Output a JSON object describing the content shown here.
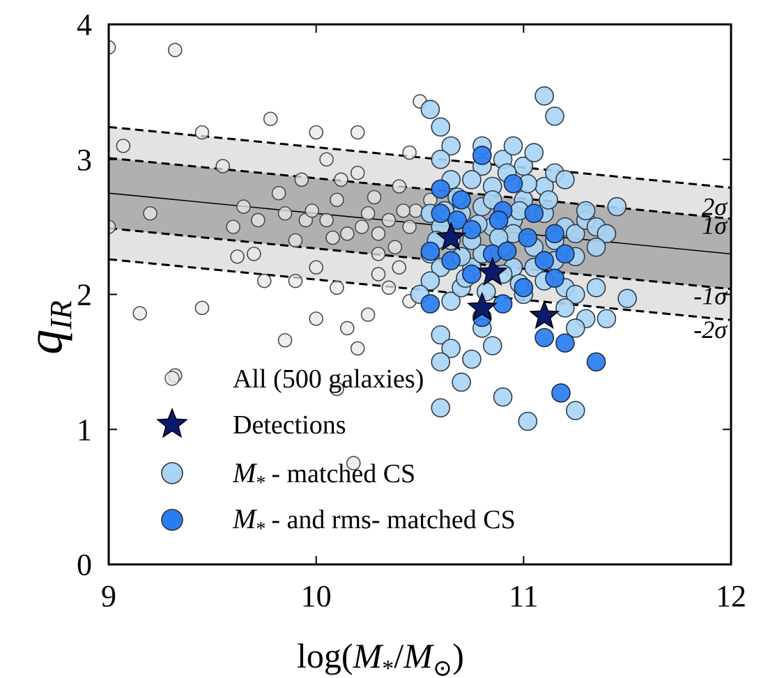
{
  "chart_data": {
    "type": "scatter",
    "xlabel": "log(M*/M⊙)",
    "ylabel": "q_IR",
    "xlim": [
      9,
      12
    ],
    "ylim": [
      0,
      4
    ],
    "xticks": [
      9,
      10,
      11,
      12
    ],
    "yticks": [
      0,
      1,
      2,
      3,
      4
    ],
    "xtick_labels": [
      "9",
      "10",
      "11",
      "12"
    ],
    "ytick_labels": [
      "0",
      "1",
      "2",
      "3",
      "4"
    ],
    "grid": false,
    "legend_position": "lower-left",
    "fit_line": {
      "x": [
        9,
        12
      ],
      "y": [
        2.75,
        2.3
      ]
    },
    "bands": [
      {
        "label": "1σ",
        "offset": 0.26,
        "color": "#b0b0b0"
      },
      {
        "label": "2σ",
        "offset": 0.49,
        "color": "#e3e3e3"
      }
    ],
    "band_labels": [
      "2σ",
      "1σ",
      "-1σ",
      "-2σ"
    ],
    "colors": {
      "all": "#e8e8e4",
      "detections": "#0b1a6b",
      "mass_matched": "#a8d4f5",
      "mass_rms_matched": "#2a7df0"
    },
    "series": [
      {
        "name": "All (500 galaxies)",
        "marker": "circle-hollow-grey",
        "points": [
          [
            9.0,
            3.83
          ],
          [
            9.32,
            3.81
          ],
          [
            9.07,
            3.1
          ],
          [
            9.45,
            3.2
          ],
          [
            9.15,
            1.86
          ],
          [
            9.45,
            1.9
          ],
          [
            9.32,
            1.4
          ],
          [
            9.2,
            2.6
          ],
          [
            9.0,
            2.5
          ],
          [
            9.55,
            2.95
          ],
          [
            9.65,
            2.65
          ],
          [
            9.6,
            2.5
          ],
          [
            9.7,
            2.3
          ],
          [
            9.78,
            3.3
          ],
          [
            9.85,
            2.6
          ],
          [
            9.9,
            2.4
          ],
          [
            9.95,
            2.55
          ],
          [
            10.05,
            3.0
          ],
          [
            10.1,
            2.7
          ],
          [
            10.15,
            2.45
          ],
          [
            10.2,
            2.9
          ],
          [
            10.25,
            2.6
          ],
          [
            10.3,
            2.3
          ],
          [
            10.35,
            2.55
          ],
          [
            10.4,
            2.8
          ],
          [
            10.45,
            2.5
          ],
          [
            10.0,
            2.2
          ],
          [
            9.9,
            2.1
          ],
          [
            10.0,
            1.82
          ],
          [
            10.15,
            1.75
          ],
          [
            10.2,
            1.6
          ],
          [
            10.25,
            1.85
          ],
          [
            9.85,
            1.66
          ],
          [
            10.1,
            1.3
          ],
          [
            10.35,
            2.05
          ],
          [
            10.4,
            2.2
          ],
          [
            10.45,
            1.95
          ],
          [
            9.75,
            2.1
          ],
          [
            9.62,
            2.28
          ],
          [
            10.0,
            3.2
          ],
          [
            10.2,
            3.2
          ],
          [
            10.5,
            3.43
          ],
          [
            10.18,
            0.75
          ],
          [
            9.93,
            2.85
          ],
          [
            10.08,
            2.42
          ],
          [
            10.28,
            2.72
          ],
          [
            10.48,
            2.62
          ],
          [
            9.72,
            2.55
          ],
          [
            9.82,
            2.75
          ],
          [
            10.05,
            2.55
          ],
          [
            10.3,
            2.45
          ],
          [
            10.38,
            2.35
          ],
          [
            10.42,
            2.62
          ],
          [
            10.1,
            2.05
          ],
          [
            10.3,
            2.15
          ],
          [
            9.98,
            2.62
          ],
          [
            10.22,
            2.5
          ],
          [
            10.12,
            2.85
          ],
          [
            10.45,
            3.05
          ],
          [
            10.55,
            2.7
          ]
        ]
      },
      {
        "name": "Detections",
        "marker": "star",
        "points": [
          [
            10.65,
            2.42
          ],
          [
            10.85,
            2.16
          ],
          [
            10.8,
            1.9
          ],
          [
            11.1,
            1.84
          ]
        ]
      },
      {
        "name": "M* - matched CS",
        "marker": "circle-light-blue",
        "points": [
          [
            10.55,
            3.37
          ],
          [
            10.6,
            3.24
          ],
          [
            10.65,
            3.1
          ],
          [
            10.6,
            3.0
          ],
          [
            10.65,
            2.85
          ],
          [
            10.7,
            2.7
          ],
          [
            10.55,
            2.6
          ],
          [
            10.6,
            2.5
          ],
          [
            10.65,
            2.4
          ],
          [
            10.55,
            2.3
          ],
          [
            10.6,
            2.2
          ],
          [
            10.55,
            2.1
          ],
          [
            10.5,
            2.0
          ],
          [
            10.65,
            1.95
          ],
          [
            10.7,
            2.05
          ],
          [
            10.75,
            2.2
          ],
          [
            10.8,
            2.3
          ],
          [
            10.85,
            2.5
          ],
          [
            10.8,
            2.65
          ],
          [
            10.85,
            2.8
          ],
          [
            10.8,
            2.95
          ],
          [
            10.8,
            3.1
          ],
          [
            10.9,
            3.0
          ],
          [
            10.95,
            3.1
          ],
          [
            11.0,
            2.95
          ],
          [
            11.05,
            3.05
          ],
          [
            11.1,
            3.47
          ],
          [
            11.15,
            3.32
          ],
          [
            11.1,
            2.8
          ],
          [
            11.15,
            2.9
          ],
          [
            11.2,
            2.85
          ],
          [
            11.1,
            2.6
          ],
          [
            11.2,
            2.5
          ],
          [
            11.15,
            2.4
          ],
          [
            11.25,
            2.45
          ],
          [
            11.3,
            2.55
          ],
          [
            11.35,
            2.5
          ],
          [
            11.4,
            2.45
          ],
          [
            11.45,
            2.65
          ],
          [
            11.35,
            2.35
          ],
          [
            11.35,
            2.05
          ],
          [
            11.2,
            2.05
          ],
          [
            11.25,
            2.0
          ],
          [
            11.3,
            1.82
          ],
          [
            11.4,
            1.82
          ],
          [
            11.5,
            1.97
          ],
          [
            11.2,
            1.9
          ],
          [
            11.25,
            1.75
          ],
          [
            11.0,
            2.0
          ],
          [
            10.95,
            2.2
          ],
          [
            10.9,
            2.35
          ],
          [
            10.95,
            2.55
          ],
          [
            11.0,
            2.7
          ],
          [
            10.75,
            2.85
          ],
          [
            10.7,
            2.6
          ],
          [
            10.6,
            1.7
          ],
          [
            10.65,
            1.6
          ],
          [
            10.75,
            1.52
          ],
          [
            10.85,
            1.62
          ],
          [
            10.8,
            1.75
          ],
          [
            10.6,
            1.5
          ],
          [
            10.7,
            1.35
          ],
          [
            10.6,
            1.16
          ],
          [
            10.9,
            1.24
          ],
          [
            11.02,
            1.06
          ],
          [
            11.25,
            1.14
          ],
          [
            10.95,
            2.45
          ],
          [
            10.9,
            2.15
          ],
          [
            10.75,
            2.4
          ],
          [
            10.7,
            2.28
          ],
          [
            11.05,
            2.35
          ],
          [
            11.05,
            2.2
          ],
          [
            11.1,
            2.1
          ],
          [
            11.15,
            2.25
          ],
          [
            10.98,
            2.62
          ],
          [
            10.85,
            2.7
          ],
          [
            10.68,
            2.72
          ],
          [
            10.62,
            2.62
          ],
          [
            11.12,
            2.7
          ],
          [
            10.92,
            2.9
          ],
          [
            11.02,
            2.82
          ],
          [
            10.78,
            2.52
          ],
          [
            10.88,
            2.42
          ],
          [
            10.58,
            2.4
          ],
          [
            10.72,
            2.12
          ],
          [
            11.3,
            2.62
          ],
          [
            11.25,
            2.28
          ],
          [
            10.82,
            2.02
          ],
          [
            10.98,
            2.08
          ]
        ]
      },
      {
        "name": "M* - and rms- matched CS",
        "marker": "circle-blue",
        "points": [
          [
            10.8,
            3.03
          ],
          [
            10.95,
            2.82
          ],
          [
            10.6,
            2.78
          ],
          [
            10.68,
            2.55
          ],
          [
            10.75,
            2.48
          ],
          [
            10.9,
            2.62
          ],
          [
            11.05,
            2.6
          ],
          [
            11.15,
            2.45
          ],
          [
            11.2,
            2.3
          ],
          [
            11.1,
            2.25
          ],
          [
            10.85,
            2.3
          ],
          [
            10.75,
            2.15
          ],
          [
            10.65,
            2.25
          ],
          [
            10.55,
            2.32
          ],
          [
            10.55,
            1.93
          ],
          [
            10.9,
            1.93
          ],
          [
            11.0,
            2.05
          ],
          [
            11.15,
            2.12
          ],
          [
            10.8,
            1.83
          ],
          [
            11.1,
            1.68
          ],
          [
            11.2,
            1.64
          ],
          [
            11.35,
            1.5
          ],
          [
            11.18,
            1.27
          ],
          [
            10.7,
            2.7
          ],
          [
            10.88,
            2.55
          ],
          [
            11.02,
            2.42
          ],
          [
            10.92,
            2.32
          ],
          [
            10.6,
            2.6
          ]
        ]
      }
    ]
  },
  "legend": {
    "all": "All (500 galaxies)",
    "detections": "Detections",
    "mass_matched": "- matched CS",
    "mass_rms_matched": "- and rms- matched CS",
    "mass_symbol": "M",
    "mass_subscript": "*"
  },
  "axis_text": {
    "x_prefix": "log(",
    "x_m": "M",
    "x_star": "*",
    "x_slash": "/",
    "x_m2": "M",
    "x_sun": "⊙",
    "x_suffix": ")",
    "y_main": "q",
    "y_sub": "IR"
  }
}
